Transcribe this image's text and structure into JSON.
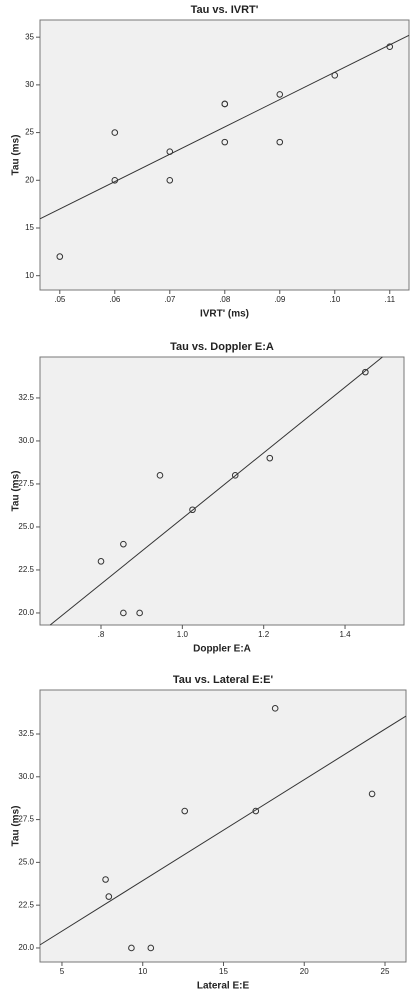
{
  "chart_data": [
    {
      "type": "scatter",
      "title": "Tau vs. IVRT'",
      "x_label": "IVRT' (ms)",
      "y_label": "Tau (ms)",
      "x": [
        0.05,
        0.06,
        0.06,
        0.07,
        0.07,
        0.08,
        0.08,
        0.08,
        0.09,
        0.09,
        0.1,
        0.11
      ],
      "values": [
        12,
        25,
        20,
        23,
        20,
        28,
        28,
        24,
        29,
        24,
        31,
        34
      ],
      "fit_line": {
        "x": [
          0.0464,
          0.1135
        ],
        "values": [
          15.96,
          35.2
        ]
      },
      "xlim": [
        0.0464,
        0.1135
      ],
      "ylim": [
        8.5,
        36.8
      ],
      "xticks": [
        {
          "value": 0.05,
          "label": ".05"
        },
        {
          "value": 0.06,
          "label": ".06"
        },
        {
          "value": 0.07,
          "label": ".07"
        },
        {
          "value": 0.08,
          "label": ".08"
        },
        {
          "value": 0.09,
          "label": ".09"
        },
        {
          "value": 0.1,
          "label": ".10"
        },
        {
          "value": 0.11,
          "label": ".11"
        }
      ],
      "yticks": [
        10,
        15,
        20,
        25,
        30,
        35
      ],
      "color": "#333333"
    },
    {
      "type": "scatter",
      "title": "Tau vs. Doppler E:A",
      "x_label": "Doppler E:A",
      "y_label": "Tau (ms)",
      "x": [
        0.8,
        0.855,
        0.855,
        0.895,
        0.945,
        1.025,
        1.13,
        1.215,
        1.45
      ],
      "values": [
        23,
        24,
        20,
        20,
        28,
        26,
        28,
        29,
        34
      ],
      "fit_line": {
        "x": [
          0.675,
          1.492
        ],
        "values": [
          19.3,
          34.88
        ]
      },
      "xlim": [
        0.65,
        1.545
      ],
      "ylim": [
        19.3,
        34.88
      ],
      "xticks": [
        {
          "value": 0.8,
          "label": ".8"
        },
        {
          "value": 1.0,
          "label": "1.0"
        },
        {
          "value": 1.2,
          "label": "1.2"
        },
        {
          "value": 1.4,
          "label": "1.4"
        }
      ],
      "yticks": [
        {
          "value": 20,
          "label": "20.0"
        },
        {
          "value": 22.5,
          "label": "22.5"
        },
        {
          "value": 25,
          "label": "25.0"
        },
        {
          "value": 27.5,
          "label": "27.5"
        },
        {
          "value": 30,
          "label": "30.0"
        },
        {
          "value": 32.5,
          "label": "32.5"
        }
      ],
      "color": "#333333"
    },
    {
      "type": "scatter",
      "title": "Tau vs. Lateral E:E'",
      "x_label": "Lateral E:E",
      "y_label": "Tau (ms)",
      "x": [
        7.7,
        7.9,
        9.3,
        10.5,
        12.6,
        17.0,
        18.2,
        24.2
      ],
      "values": [
        24,
        23,
        20,
        20,
        28,
        28,
        34,
        29
      ],
      "fit_line": {
        "x": [
          3.64,
          26.3
        ],
        "values": [
          20.18,
          33.55
        ]
      },
      "xlim": [
        3.64,
        26.3
      ],
      "ylim": [
        19.18,
        35.07
      ],
      "xticks": [
        5,
        10,
        15,
        20,
        25
      ],
      "yticks": [
        {
          "value": 20,
          "label": "20.0"
        },
        {
          "value": 22.5,
          "label": "22.5"
        },
        {
          "value": 25,
          "label": "25.0"
        },
        {
          "value": 27.5,
          "label": "27.5"
        },
        {
          "value": 30,
          "label": "30.0"
        },
        {
          "value": 32.5,
          "label": "32.5"
        }
      ],
      "color": "#333333"
    }
  ]
}
